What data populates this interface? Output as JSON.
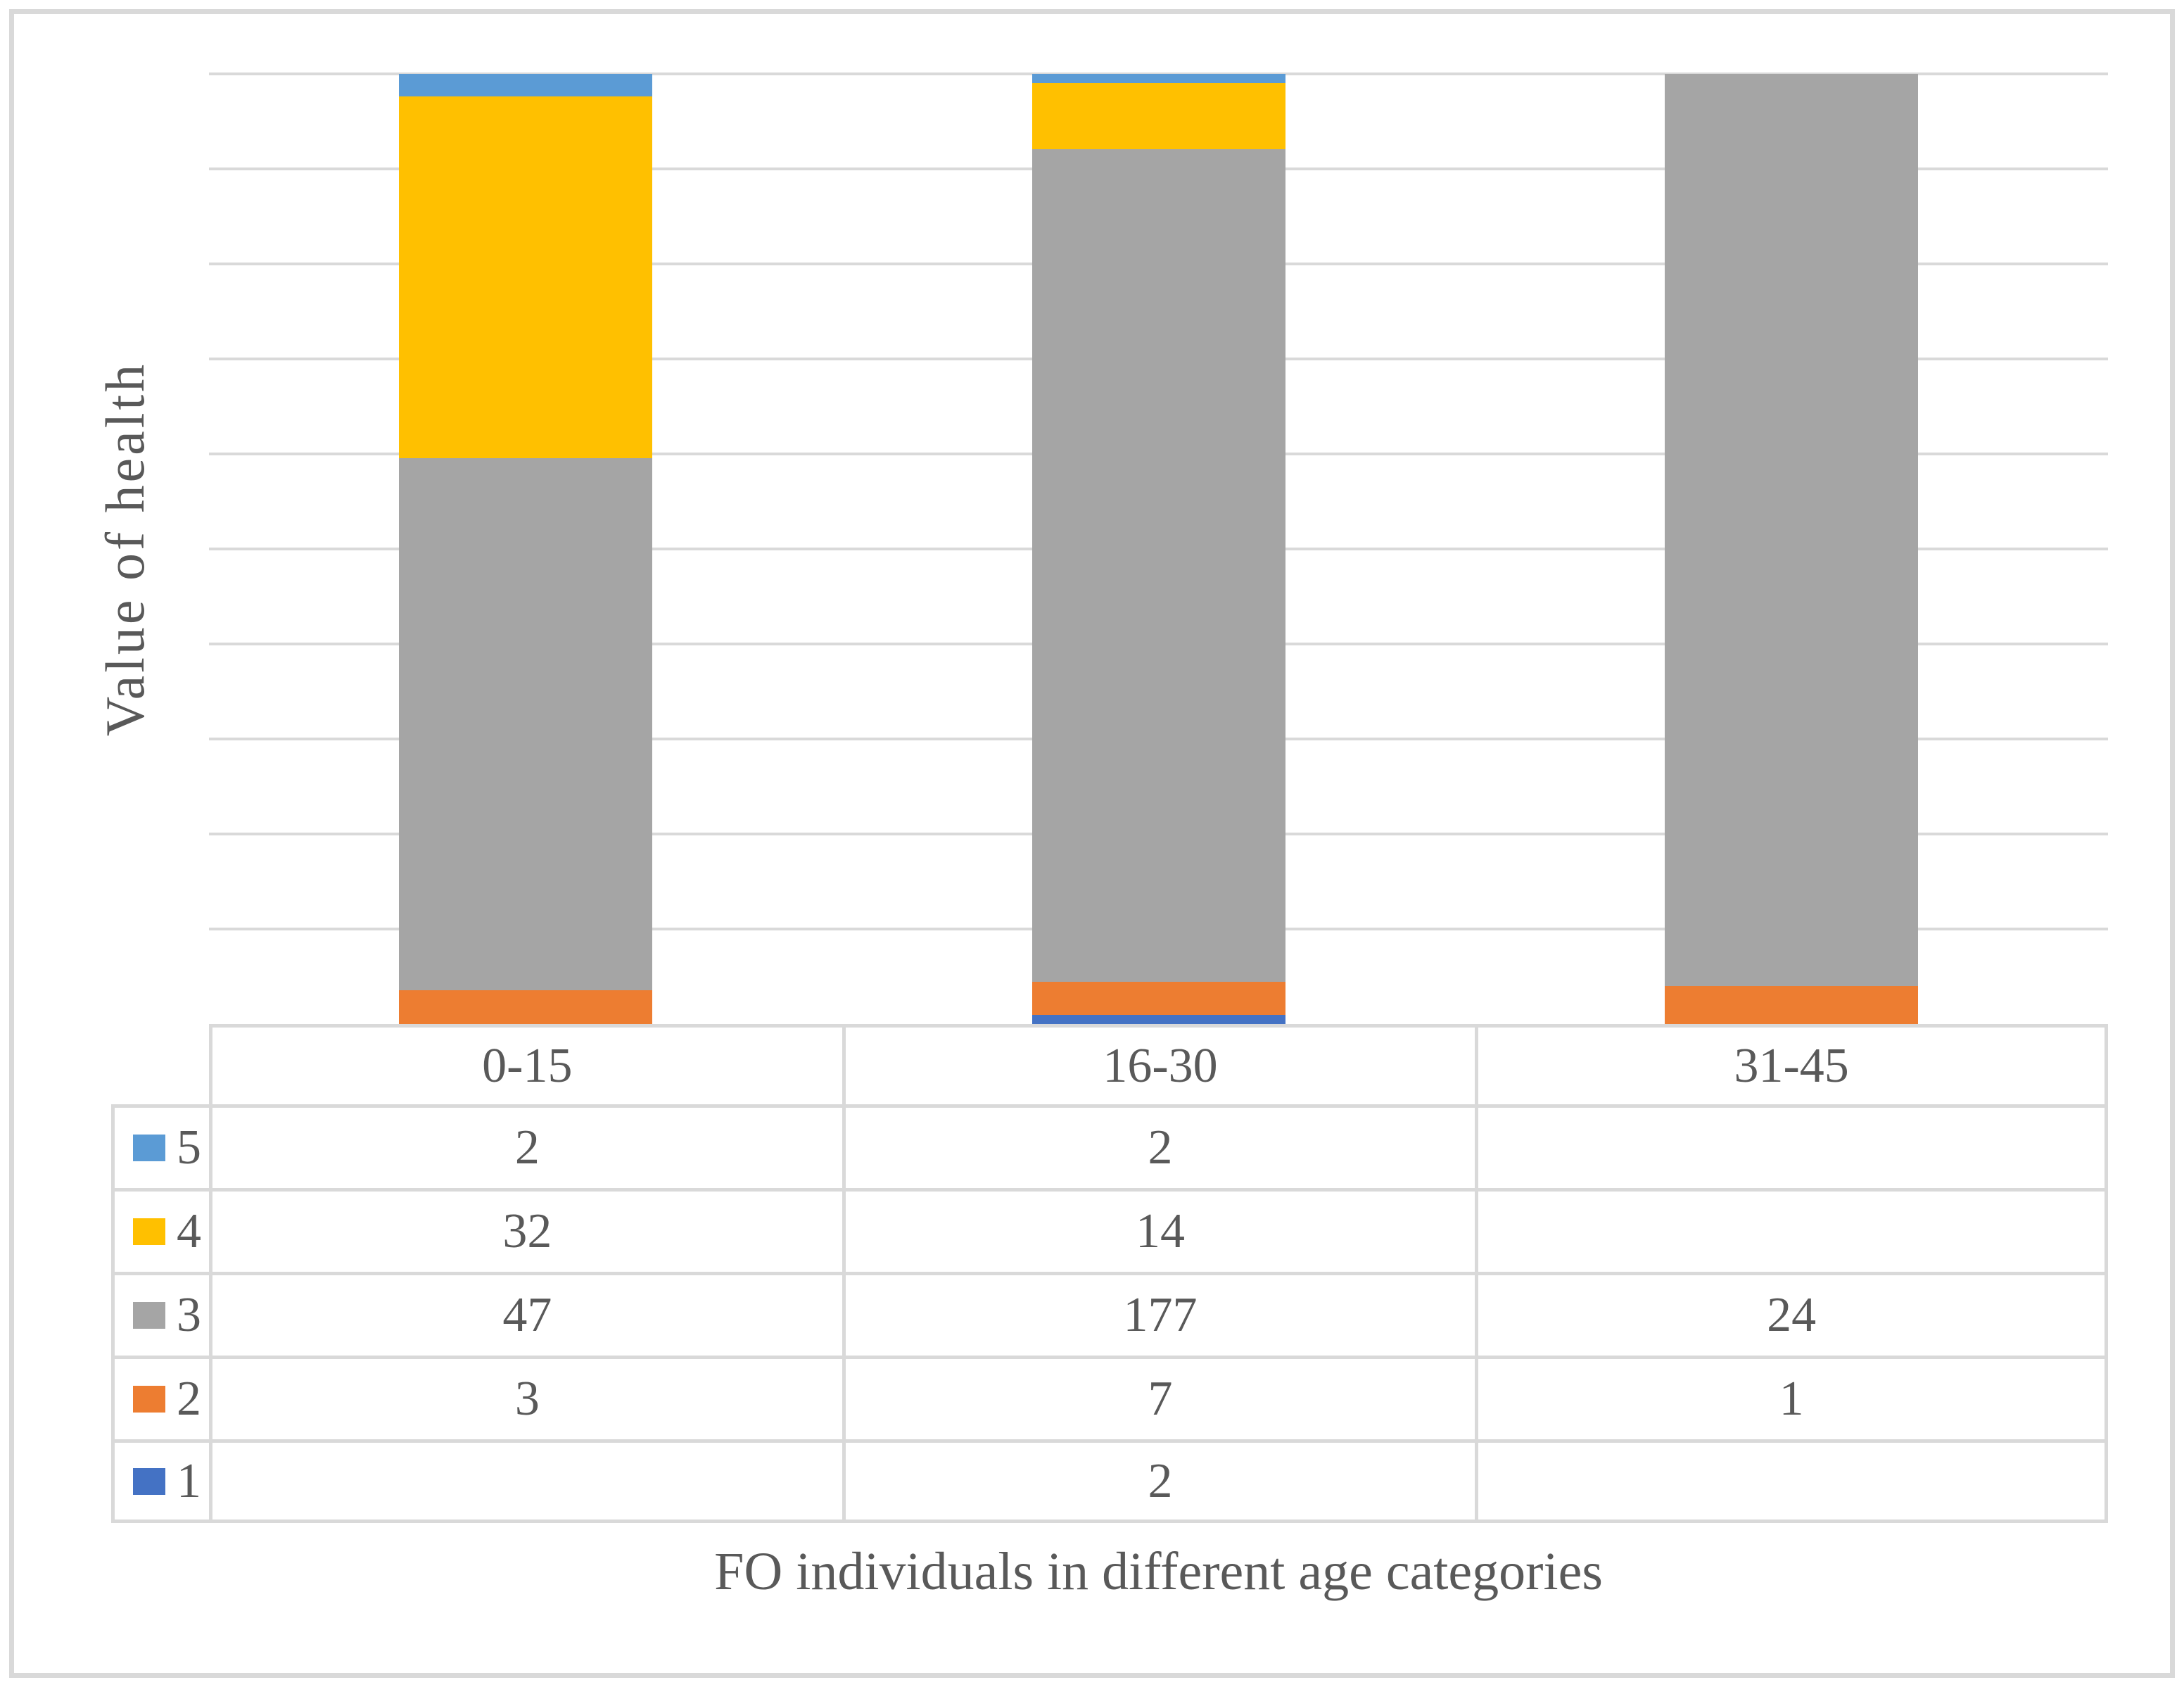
{
  "chart_data": {
    "type": "bar",
    "variant": "100-percent-stacked-column",
    "title": "",
    "xlabel": "FO individuals in different age categories",
    "ylabel": "Value of health",
    "categories": [
      "0-15",
      "16-30",
      "31-45"
    ],
    "series": [
      {
        "name": "5",
        "color": "#5B9BD5",
        "values": [
          2,
          2,
          null
        ]
      },
      {
        "name": "4",
        "color": "#FFC000",
        "values": [
          32,
          14,
          null
        ]
      },
      {
        "name": "3",
        "color": "#A5A5A5",
        "values": [
          47,
          177,
          24
        ]
      },
      {
        "name": "2",
        "color": "#ED7D31",
        "values": [
          3,
          7,
          1
        ]
      },
      {
        "name": "1",
        "color": "#4472C4",
        "values": [
          null,
          2,
          null
        ]
      }
    ],
    "stack_order_bottom_to_top": [
      "1",
      "2",
      "3",
      "4",
      "5"
    ],
    "axis": {
      "y_range_pct": [
        0,
        100
      ],
      "gridline_intervals": 10,
      "y_tick_labels_visible": false,
      "grid": true
    },
    "legend_position": "table-left-column"
  },
  "style": {
    "gridline_color": "#D9D9D9",
    "table_border_color": "#D9D9D9",
    "frame_border_color": "#D9D9D9",
    "text_color": "#595959",
    "background": "#FFFFFF"
  }
}
